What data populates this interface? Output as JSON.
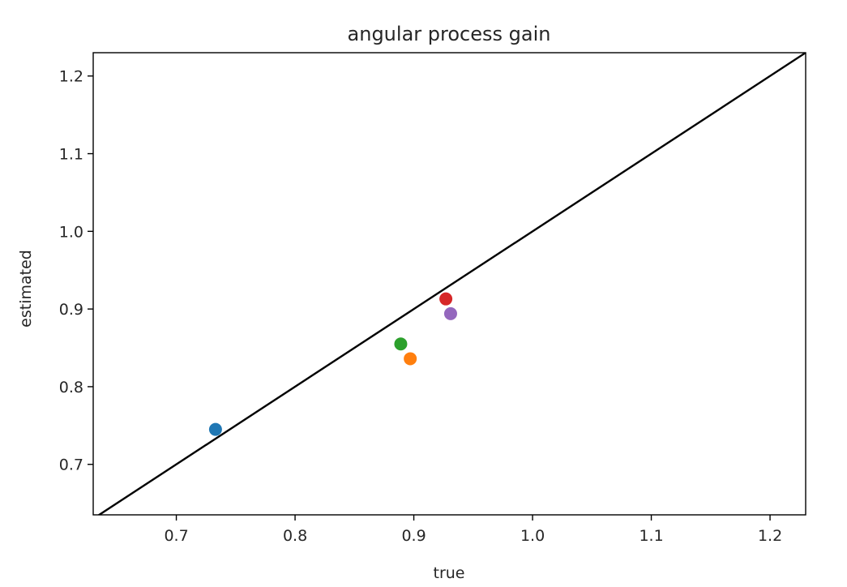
{
  "chart_data": {
    "type": "scatter",
    "title": "angular process gain",
    "xlabel": "true",
    "ylabel": "estimated",
    "xlim": [
      0.63,
      1.23
    ],
    "ylim": [
      0.635,
      1.23
    ],
    "xticks": [
      0.7,
      0.8,
      0.9,
      1.0,
      1.1,
      1.2
    ],
    "xtick_labels": [
      "0.7",
      "0.8",
      "0.9",
      "1.0",
      "1.1",
      "1.2"
    ],
    "yticks": [
      0.7,
      0.8,
      0.9,
      1.0,
      1.1,
      1.2
    ],
    "ytick_labels": [
      "0.7",
      "0.8",
      "0.9",
      "1.0",
      "1.1",
      "1.2"
    ],
    "grid": false,
    "identity_line": {
      "x": [
        0.63,
        1.23
      ],
      "y": [
        0.63,
        1.23
      ],
      "color": "#000000"
    },
    "points": [
      {
        "x": 0.733,
        "y": 0.745,
        "color": "#1f77b4"
      },
      {
        "x": 0.897,
        "y": 0.836,
        "color": "#ff7f0e"
      },
      {
        "x": 0.889,
        "y": 0.855,
        "color": "#2ca02c"
      },
      {
        "x": 0.927,
        "y": 0.913,
        "color": "#d62728"
      },
      {
        "x": 0.931,
        "y": 0.894,
        "color": "#9467bd"
      }
    ]
  }
}
